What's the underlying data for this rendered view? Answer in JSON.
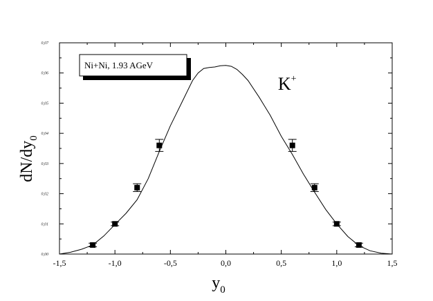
{
  "chart_data": {
    "type": "scatter",
    "title": "",
    "xlabel": "y",
    "xlabel_sub": "0",
    "ylabel": "dN/dy",
    "ylabel_sub": "0",
    "xlim": [
      -1.5,
      1.5
    ],
    "ylim": [
      0.0,
      0.07
    ],
    "grid": false,
    "legend": "top-left",
    "xticks": [
      -1.5,
      -1.0,
      -0.5,
      0.0,
      0.5,
      1.0,
      1.5
    ],
    "xtick_labels": [
      "-1,5",
      "-1,0",
      "-0,5",
      "0,0",
      "0,5",
      "1,0",
      "1,5"
    ],
    "yticks": [
      0.0,
      0.01,
      0.02,
      0.03,
      0.04,
      0.05,
      0.06,
      0.07
    ],
    "ytick_labels": [
      "0,00",
      "0,01",
      "0,02",
      "0,03",
      "0,04",
      "0,05",
      "0,06",
      "0,07"
    ],
    "legend_box_text": "Ni+Ni, 1.93 AGeV",
    "annotation": {
      "text": "K",
      "sup": "+",
      "x": 0.47,
      "y": 0.0545
    },
    "series": [
      {
        "kind": "points",
        "marker": "square",
        "x": [
          -1.2,
          -1.0,
          -0.8,
          -0.6,
          0.6,
          0.8,
          1.0,
          1.2
        ],
        "y": [
          0.003,
          0.01,
          0.022,
          0.036,
          0.036,
          0.022,
          0.01,
          0.003
        ],
        "yerr": [
          0.0006,
          0.0006,
          0.0013,
          0.002,
          0.002,
          0.0013,
          0.0006,
          0.0006
        ]
      },
      {
        "kind": "line",
        "x": [
          -1.5,
          -1.4,
          -1.3,
          -1.2,
          -1.1,
          -1.0,
          -0.9,
          -0.8,
          -0.7,
          -0.6,
          -0.5,
          -0.4,
          -0.3,
          -0.25,
          -0.2,
          -0.15,
          -0.1,
          -0.05,
          0.0,
          0.05,
          0.1,
          0.15,
          0.2,
          0.3,
          0.4,
          0.5,
          0.6,
          0.7,
          0.8,
          0.9,
          1.0,
          1.1,
          1.2,
          1.3,
          1.4,
          1.5
        ],
        "y": [
          0.0,
          0.0006,
          0.0016,
          0.003,
          0.006,
          0.0098,
          0.0135,
          0.018,
          0.025,
          0.034,
          0.0425,
          0.05,
          0.0575,
          0.06,
          0.0615,
          0.0618,
          0.062,
          0.0624,
          0.0625,
          0.0622,
          0.0612,
          0.0595,
          0.0575,
          0.052,
          0.046,
          0.039,
          0.033,
          0.0265,
          0.0205,
          0.0148,
          0.01,
          0.0058,
          0.0028,
          0.0011,
          0.0003,
          0.0
        ]
      }
    ]
  }
}
